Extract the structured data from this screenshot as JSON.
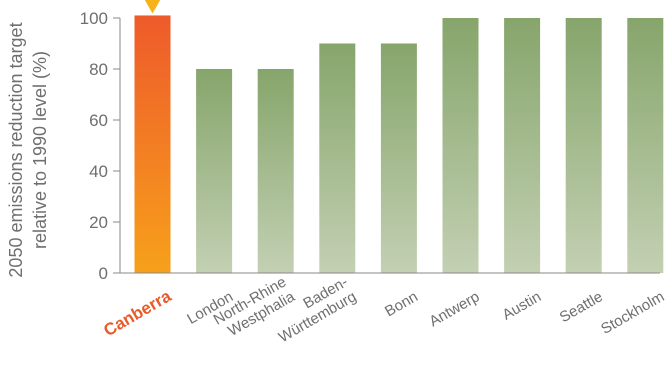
{
  "chart_data": {
    "type": "bar",
    "categories": [
      [
        "Canberra"
      ],
      [
        "London"
      ],
      [
        "North-Rhine",
        "Westphalia"
      ],
      [
        "Baden-",
        "Württemburg"
      ],
      [
        "Bonn"
      ],
      [
        "Antwerp"
      ],
      [
        "Austin"
      ],
      [
        "Seattle"
      ],
      [
        "Stockholm"
      ]
    ],
    "values": [
      101,
      80,
      80,
      90,
      90,
      100,
      100,
      100,
      100
    ],
    "ylabel": [
      "2050 emissions reduction target",
      "relative to 1990 level (%)"
    ],
    "ylim": [
      0,
      100
    ],
    "yticks": [
      0,
      20,
      40,
      60,
      80,
      100
    ],
    "highlight_index": 0,
    "colors": {
      "highlight_top": "#ee5a2b",
      "highlight_bottom": "#f7a01b",
      "bar_top": "#86a56b",
      "bar_bottom": "#c3d0b3",
      "marker": "#f7b21b",
      "axis": "#8a8a8a",
      "text": "#6f6f6f",
      "highlight_text": "#ea5b2a"
    }
  }
}
